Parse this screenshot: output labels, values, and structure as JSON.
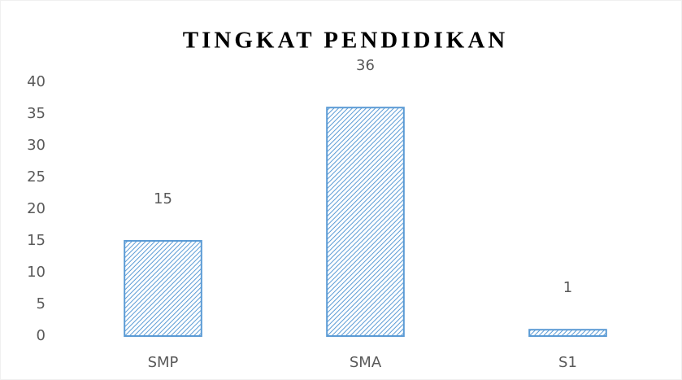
{
  "chart_data": {
    "type": "bar",
    "title": "TINGKAT PENDIDIKAN",
    "categories": [
      "SMP",
      "SMA",
      "S1"
    ],
    "values": [
      15,
      36,
      1
    ],
    "color": "#5b9bd5",
    "ylim": [
      0,
      40
    ],
    "yticks": [
      0,
      5,
      10,
      15,
      20,
      25,
      30,
      35,
      40
    ],
    "grid": false
  }
}
